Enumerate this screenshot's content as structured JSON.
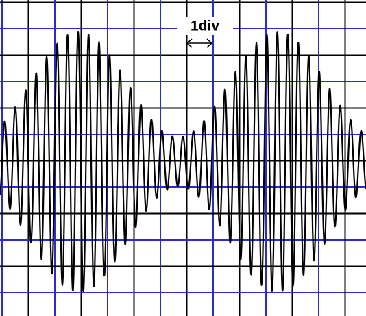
{
  "annotation": {
    "label": "1div"
  }
}
